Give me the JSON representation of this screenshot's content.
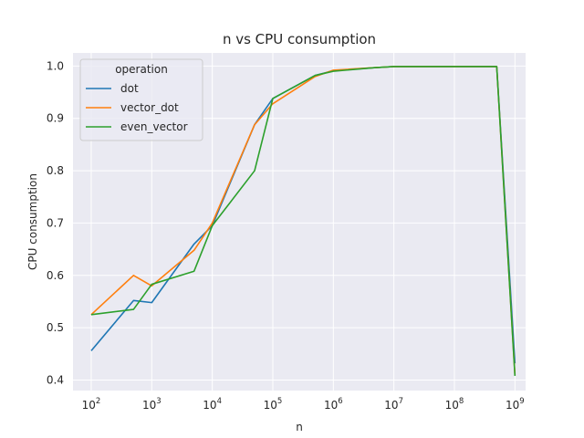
{
  "chart_data": {
    "type": "line",
    "title": "n vs CPU consumption",
    "xlabel": "n",
    "ylabel": "CPU consumption",
    "x_scale": "log",
    "xlim": [
      50,
      1500000000
    ],
    "ylim": [
      0.38,
      1.025
    ],
    "grid": true,
    "legend": {
      "title": "operation",
      "placement": "top-left"
    },
    "x_ticks": [
      {
        "value": 100,
        "base": "10",
        "exp": "2"
      },
      {
        "value": 1000,
        "base": "10",
        "exp": "3"
      },
      {
        "value": 10000,
        "base": "10",
        "exp": "4"
      },
      {
        "value": 100000,
        "base": "10",
        "exp": "5"
      },
      {
        "value": 1000000,
        "base": "10",
        "exp": "6"
      },
      {
        "value": 10000000,
        "base": "10",
        "exp": "7"
      },
      {
        "value": 100000000,
        "base": "10",
        "exp": "8"
      },
      {
        "value": 1000000000,
        "base": "10",
        "exp": "9"
      }
    ],
    "y_ticks": [
      {
        "value": 0.4,
        "label": "0.4"
      },
      {
        "value": 0.5,
        "label": "0.5"
      },
      {
        "value": 0.6,
        "label": "0.6"
      },
      {
        "value": 0.7,
        "label": "0.7"
      },
      {
        "value": 0.8,
        "label": "0.8"
      },
      {
        "value": 0.9,
        "label": "0.9"
      },
      {
        "value": 1.0,
        "label": "1.0"
      }
    ],
    "x": [
      100,
      500,
      1000,
      5000,
      10000,
      50000,
      100000,
      500000,
      1000000,
      5000000,
      10000000,
      50000000,
      100000000,
      500000000,
      1000000000
    ],
    "series": [
      {
        "name": "dot",
        "color": "#1f77b4",
        "values": [
          0.456,
          0.552,
          0.548,
          0.66,
          0.695,
          0.888,
          0.938,
          0.982,
          0.991,
          0.997,
          0.999,
          0.999,
          0.999,
          0.999,
          0.432
        ]
      },
      {
        "name": "vector_dot",
        "color": "#ff7f0e",
        "values": [
          0.525,
          0.6,
          0.58,
          0.648,
          0.7,
          0.888,
          0.928,
          0.98,
          0.992,
          0.997,
          0.999,
          0.999,
          0.999,
          0.999,
          0.41
        ]
      },
      {
        "name": "even_vector",
        "color": "#2ca02c",
        "values": [
          0.525,
          0.535,
          0.583,
          0.608,
          0.695,
          0.8,
          0.938,
          0.982,
          0.99,
          0.997,
          0.999,
          0.999,
          0.999,
          0.999,
          0.408
        ]
      }
    ]
  }
}
